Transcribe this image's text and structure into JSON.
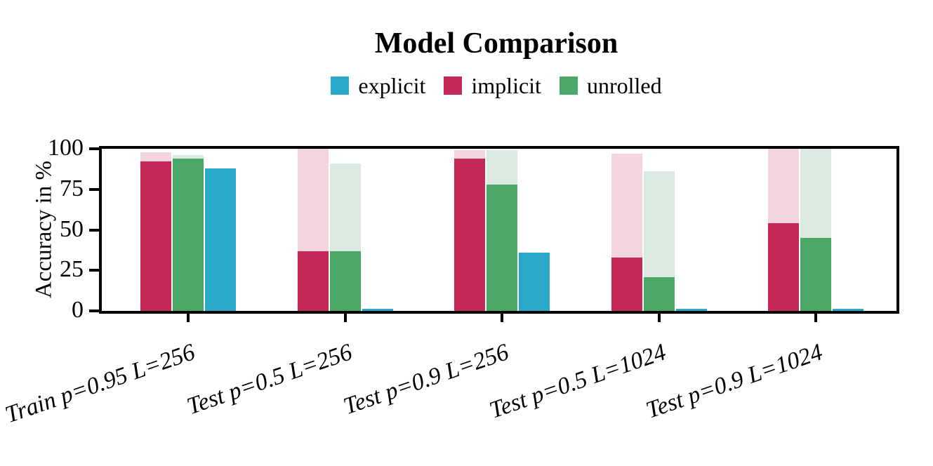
{
  "chart_data": {
    "type": "bar",
    "title": "Model Comparison",
    "ylabel": "Accuracy in %",
    "ylim": [
      0,
      100
    ],
    "yticks": [
      0,
      25,
      50,
      75,
      100
    ],
    "grid": false,
    "legend_position": "top-center",
    "background_color": "#ffffff",
    "axis_color": "#000000",
    "categories": [
      "Train p=0.95 L=256",
      "Test p=0.5 L=256",
      "Test p=0.9 L=256",
      "Test p=0.5 L=1024",
      "Test p=0.9 L=1024"
    ],
    "legend": [
      {
        "label": "explicit",
        "color": "#2aa8c9"
      },
      {
        "label": "implicit",
        "color": "#c32856"
      },
      {
        "label": "unrolled",
        "color": "#4aa768"
      }
    ],
    "bar_display_order": [
      "implicit",
      "unrolled",
      "explicit"
    ],
    "series": [
      {
        "name": "implicit",
        "color": "#c32856",
        "faded_color": "#f3d4df",
        "values": [
          92,
          37,
          94,
          33,
          54
        ],
        "faded_values": [
          98,
          100,
          99,
          97,
          100
        ]
      },
      {
        "name": "unrolled",
        "color": "#4aa768",
        "faded_color": "#dbeae0",
        "values": [
          94,
          37,
          78,
          21,
          45
        ],
        "faded_values": [
          96,
          91,
          99,
          86,
          100
        ]
      },
      {
        "name": "explicit",
        "color": "#2aa8c9",
        "faded_color": "#d8eff6",
        "values": [
          88,
          1.5,
          36,
          1.5,
          1.5
        ],
        "faded_values": [
          88,
          1.5,
          36,
          1.5,
          1.5
        ]
      }
    ]
  }
}
